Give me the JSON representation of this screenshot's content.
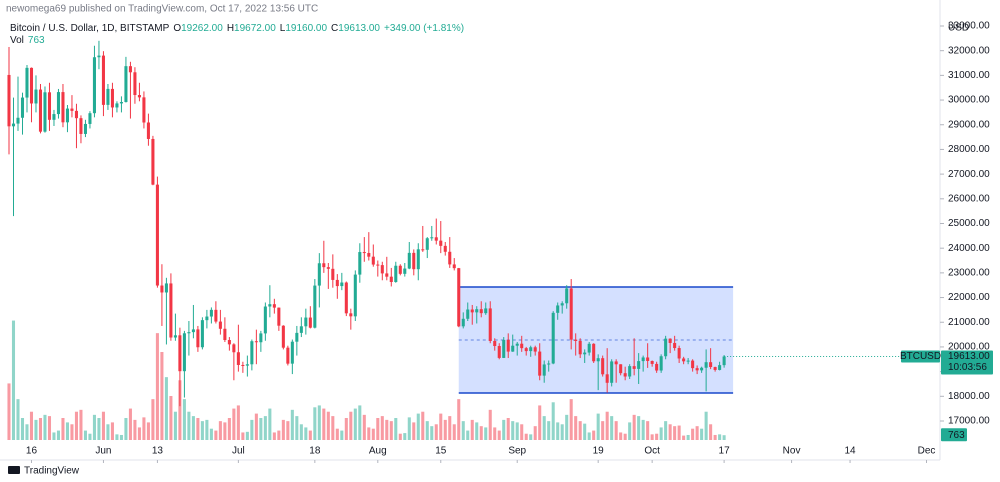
{
  "chart_data": {
    "type": "candlestick",
    "publisher": "newomega69 published on TradingView.com, Oct 17, 2022 13:56 UTC",
    "symbol": "Bitcoin / U.S. Dollar, 1D, BITSTAMP",
    "ohlc_header": [
      {
        "key": "O",
        "value": "19262.00"
      },
      {
        "key": "H",
        "value": "19672.00"
      },
      {
        "key": "L",
        "value": "19160.00"
      },
      {
        "key": "C",
        "value": "19613.00"
      }
    ],
    "change": "+349.00 (+1.81%)",
    "volume_key": "Vol",
    "volume_value": "763",
    "y_axis_title": "USD",
    "logo": "TradingView",
    "up_color": "#22ab94",
    "down_color": "#f23645",
    "box_color": "#2962ff",
    "grid": false,
    "x": [
      "2022-05-11",
      "2022-05-12",
      "2022-05-13",
      "2022-05-14",
      "2022-05-15",
      "2022-05-16",
      "2022-05-17",
      "2022-05-18",
      "2022-05-19",
      "2022-05-20",
      "2022-05-21",
      "2022-05-22",
      "2022-05-23",
      "2022-05-24",
      "2022-05-25",
      "2022-05-26",
      "2022-05-27",
      "2022-05-28",
      "2022-05-29",
      "2022-05-30",
      "2022-05-31",
      "2022-06-01",
      "2022-06-02",
      "2022-06-03",
      "2022-06-04",
      "2022-06-05",
      "2022-06-06",
      "2022-06-07",
      "2022-06-08",
      "2022-06-09",
      "2022-06-10",
      "2022-06-11",
      "2022-06-12",
      "2022-06-13",
      "2022-06-14",
      "2022-06-15",
      "2022-06-16",
      "2022-06-17",
      "2022-06-18",
      "2022-06-19",
      "2022-06-20",
      "2022-06-21",
      "2022-06-22",
      "2022-06-23",
      "2022-06-24",
      "2022-06-25",
      "2022-06-26",
      "2022-06-27",
      "2022-06-28",
      "2022-06-29",
      "2022-06-30",
      "2022-07-01",
      "2022-07-02",
      "2022-07-03",
      "2022-07-04",
      "2022-07-05",
      "2022-07-06",
      "2022-07-07",
      "2022-07-08",
      "2022-07-09",
      "2022-07-10",
      "2022-07-11",
      "2022-07-12",
      "2022-07-13",
      "2022-07-14",
      "2022-07-15",
      "2022-07-16",
      "2022-07-17",
      "2022-07-18",
      "2022-07-19",
      "2022-07-20",
      "2022-07-21",
      "2022-07-22",
      "2022-07-23",
      "2022-07-24",
      "2022-07-25",
      "2022-07-26",
      "2022-07-27",
      "2022-07-28",
      "2022-07-29",
      "2022-07-30",
      "2022-07-31",
      "2022-08-01",
      "2022-08-02",
      "2022-08-03",
      "2022-08-04",
      "2022-08-05",
      "2022-08-06",
      "2022-08-07",
      "2022-08-08",
      "2022-08-09",
      "2022-08-10",
      "2022-08-11",
      "2022-08-12",
      "2022-08-13",
      "2022-08-14",
      "2022-08-15",
      "2022-08-16",
      "2022-08-17",
      "2022-08-18",
      "2022-08-19",
      "2022-08-20",
      "2022-08-21",
      "2022-08-22",
      "2022-08-23",
      "2022-08-24",
      "2022-08-25",
      "2022-08-26",
      "2022-08-27",
      "2022-08-28",
      "2022-08-29",
      "2022-08-30",
      "2022-08-31",
      "2022-09-01",
      "2022-09-02",
      "2022-09-03",
      "2022-09-04",
      "2022-09-05",
      "2022-09-06",
      "2022-09-07",
      "2022-09-08",
      "2022-09-09",
      "2022-09-10",
      "2022-09-11",
      "2022-09-12",
      "2022-09-13",
      "2022-09-14",
      "2022-09-15",
      "2022-09-16",
      "2022-09-17",
      "2022-09-18",
      "2022-09-19",
      "2022-09-20",
      "2022-09-21",
      "2022-09-22",
      "2022-09-23",
      "2022-09-24",
      "2022-09-25",
      "2022-09-26",
      "2022-09-27",
      "2022-09-28",
      "2022-09-29",
      "2022-09-30",
      "2022-10-01",
      "2022-10-02",
      "2022-10-03",
      "2022-10-04",
      "2022-10-05",
      "2022-10-06",
      "2022-10-07",
      "2022-10-08",
      "2022-10-09",
      "2022-10-10",
      "2022-10-11",
      "2022-10-12",
      "2022-10-13",
      "2022-10-14",
      "2022-10-15",
      "2022-10-16",
      "2022-10-17"
    ],
    "open": [
      31017,
      28936,
      29047,
      29283,
      30101,
      31305,
      29862,
      30425,
      28720,
      30314,
      29200,
      29432,
      30323,
      29098,
      29655,
      29562,
      29267,
      28627,
      29032,
      29468,
      31734,
      31801,
      29805,
      30452,
      29700,
      29864,
      29920,
      31373,
      31125,
      30204,
      30109,
      29091,
      28424,
      26574,
      22487,
      22206,
      22572,
      20381,
      20471,
      19017,
      20553,
      20599,
      20710,
      19987,
      21085,
      21231,
      21502,
      21027,
      20735,
      20280,
      20104,
      19784,
      19269,
      19243,
      19297,
      20231,
      20190,
      20548,
      21637,
      21731,
      21592,
      20860,
      19970,
      19323,
      20212,
      20569,
      20836,
      21190,
      20779,
      22485,
      23389,
      23231,
      23164,
      22714,
      22465,
      22609,
      21361,
      21239,
      22930,
      23843,
      23804,
      23656,
      23336,
      23314,
      22978,
      22846,
      22630,
      23289,
      22961,
      23175,
      23810,
      23149,
      23954,
      23934,
      24403,
      24441,
      24305,
      24094,
      23854,
      23342,
      23191,
      20834,
      21140,
      21516,
      21400,
      21529,
      21368,
      21560,
      20241,
      20037,
      19555,
      20285,
      19811,
      20050,
      20131,
      19951,
      19831,
      19986,
      19812,
      18837,
      19290,
      19329,
      21381,
      21680,
      21769,
      22370,
      20296,
      20241,
      19701,
      19772,
      20127,
      19419,
      19544,
      18891,
      18547,
      19413,
      19297,
      18937,
      18802,
      19222,
      19110,
      19426,
      19573,
      19431,
      19312,
      19044,
      19623,
      20336,
      20160,
      19955,
      19532,
      19417,
      19446,
      19141,
      19051,
      19157,
      19382,
      19185,
      19068,
      19262
    ],
    "high": [
      32150,
      30100,
      30950,
      30300,
      31420,
      31320,
      31000,
      30650,
      30550,
      30700,
      29600,
      30450,
      30650,
      29800,
      30200,
      29850,
      29380,
      29200,
      29550,
      32200,
      32400,
      31980,
      30650,
      30700,
      29950,
      30150,
      31750,
      31550,
      31330,
      30700,
      30350,
      29450,
      28550,
      26900,
      23350,
      22800,
      22980,
      21350,
      20780,
      20650,
      21050,
      21700,
      20850,
      21200,
      21500,
      21600,
      21850,
      21500,
      21200,
      20400,
      20150,
      20900,
      19400,
      19650,
      20300,
      20700,
      20650,
      21800,
      22500,
      21950,
      21600,
      20880,
      20050,
      20300,
      20850,
      21200,
      21550,
      21650,
      22750,
      23800,
      24300,
      23400,
      23750,
      22950,
      23000,
      22650,
      21550,
      23100,
      24200,
      24450,
      24650,
      24150,
      23500,
      23450,
      23650,
      23200,
      23450,
      23350,
      23400,
      24250,
      23950,
      24200,
      24900,
      24450,
      24900,
      25200,
      25100,
      24250,
      24450,
      23600,
      23200,
      21400,
      21800,
      21700,
      21650,
      21850,
      21800,
      21850,
      20350,
      20150,
      20400,
      20550,
      20500,
      20200,
      20450,
      20000,
      20050,
      20050,
      20150,
      19450,
      19450,
      21450,
      21800,
      21850,
      22500,
      22750,
      20550,
      20350,
      19900,
      20200,
      20150,
      19700,
      19650,
      19950,
      19500,
      19500,
      19300,
      19200,
      19300,
      20350,
      19750,
      19650,
      20150,
      19450,
      19400,
      19700,
      20450,
      20350,
      20450,
      20050,
      19600,
      19550,
      19500,
      19250,
      19200,
      19900,
      19950,
      19200,
      19400,
      19672
    ],
    "low": [
      27800,
      25300,
      28750,
      28600,
      29500,
      29100,
      29500,
      28650,
      28680,
      28750,
      28950,
      29250,
      28900,
      28700,
      29300,
      28050,
      28250,
      28500,
      28850,
      29300,
      31250,
      29350,
      29600,
      29300,
      29500,
      29500,
      29900,
      29250,
      29850,
      29950,
      28850,
      28150,
      26550,
      22400,
      20850,
      20100,
      20250,
      20250,
      17600,
      17950,
      19650,
      20350,
      19800,
      19900,
      20750,
      20950,
      20950,
      20500,
      20200,
      19850,
      18650,
      19000,
      18950,
      18800,
      19050,
      19300,
      19800,
      20250,
      21200,
      21350,
      20650,
      19900,
      19250,
      18900,
      19650,
      20400,
      20500,
      20750,
      20750,
      21600,
      23000,
      22350,
      22400,
      21950,
      22300,
      21250,
      20700,
      21050,
      22600,
      23450,
      23500,
      23250,
      22850,
      22700,
      22700,
      22450,
      22600,
      22900,
      22850,
      23150,
      22900,
      22700,
      23850,
      23600,
      24300,
      24150,
      23800,
      23700,
      23200,
      23100,
      20800,
      20750,
      21050,
      20900,
      20950,
      21200,
      21300,
      20150,
      19850,
      19500,
      19550,
      19550,
      19800,
      19650,
      19800,
      19650,
      19600,
      19650,
      18650,
      18550,
      19000,
      19300,
      21100,
      21350,
      21550,
      19900,
      19650,
      19550,
      19350,
      19650,
      19350,
      18250,
      18800,
      18150,
      18400,
      18550,
      18850,
      18650,
      18700,
      18850,
      18500,
      19000,
      19150,
      19200,
      18950,
      18950,
      19500,
      19750,
      19850,
      19350,
      19300,
      19300,
      19000,
      18900,
      18950,
      18200,
      19100,
      19000,
      19050,
      19160
    ],
    "close": [
      28936,
      29047,
      29283,
      30101,
      31305,
      29862,
      30425,
      28720,
      30314,
      29200,
      29432,
      30323,
      29098,
      29655,
      29562,
      29267,
      28627,
      29032,
      29468,
      31734,
      31801,
      29805,
      30452,
      29700,
      29864,
      29920,
      31373,
      31125,
      30204,
      30109,
      29091,
      28424,
      26574,
      22487,
      22206,
      22572,
      20381,
      20471,
      19017,
      20553,
      20599,
      20710,
      19987,
      21085,
      21231,
      21502,
      21027,
      20735,
      20280,
      20104,
      19784,
      19269,
      19243,
      19297,
      20231,
      20190,
      20548,
      21637,
      21731,
      21592,
      20860,
      19970,
      19323,
      20212,
      20569,
      20836,
      21190,
      20779,
      22485,
      23389,
      23231,
      23164,
      22714,
      22465,
      22609,
      21361,
      21239,
      22930,
      23843,
      23804,
      23656,
      23336,
      23314,
      22978,
      22846,
      22630,
      23289,
      22961,
      23175,
      23810,
      23149,
      23954,
      23934,
      24403,
      24441,
      24305,
      24094,
      23854,
      23342,
      23191,
      20834,
      21140,
      21516,
      21400,
      21529,
      21368,
      21560,
      20241,
      20037,
      19555,
      20285,
      19811,
      20050,
      20131,
      19951,
      19831,
      19986,
      19812,
      18837,
      19290,
      19329,
      21381,
      21680,
      21769,
      22370,
      20296,
      20241,
      19701,
      19772,
      20127,
      19419,
      19544,
      18891,
      18547,
      19413,
      19297,
      18937,
      18802,
      19222,
      19110,
      19426,
      19573,
      19431,
      19312,
      19044,
      19623,
      20336,
      20160,
      19955,
      19532,
      19417,
      19446,
      19141,
      19051,
      19157,
      19382,
      19185,
      19068,
      19262,
      19613
    ],
    "volume": [
      9000,
      19000,
      6500,
      3500,
      2500,
      4500,
      3200,
      3500,
      4000,
      3800,
      1200,
      1500,
      3500,
      2800,
      2500,
      4500,
      4800,
      1500,
      1000,
      4000,
      3500,
      4500,
      2500,
      2800,
      900,
      800,
      3500,
      5000,
      3200,
      2000,
      3600,
      2800,
      6500,
      17000,
      14000,
      10000,
      7000,
      4500,
      9500,
      6500,
      4500,
      3800,
      3500,
      3000,
      3200,
      1800,
      1500,
      3000,
      2800,
      3500,
      5000,
      5500,
      1200,
      1300,
      3200,
      4200,
      3500,
      3800,
      5000,
      1200,
      1500,
      3200,
      3000,
      4800,
      3800,
      2500,
      2000,
      1500,
      5200,
      5500,
      5000,
      4500,
      3800,
      1800,
      1500,
      3500,
      4500,
      5000,
      5500,
      4000,
      2000,
      1800,
      3500,
      3800,
      3200,
      3000,
      3500,
      1000,
      1100,
      3600,
      2800,
      4200,
      4500,
      3000,
      2200,
      2500,
      4200,
      3200,
      3800,
      2500,
      6500,
      3000,
      1500,
      3200,
      2800,
      2200,
      2000,
      4800,
      2000,
      1500,
      3200,
      3500,
      3000,
      2800,
      2500,
      1000,
      900,
      2200,
      5500,
      3800,
      3000,
      6000,
      2800,
      2500,
      4000,
      6500,
      3800,
      3000,
      2600,
      1200,
      1500,
      4200,
      3000,
      4500,
      3800,
      3000,
      1200,
      1000,
      2800,
      4000,
      3800,
      3200,
      3000,
      900,
      1000,
      2000,
      3000,
      2500,
      2200,
      2300,
      700,
      800,
      1800,
      2200,
      1800,
      4500,
      2500,
      800,
      900,
      763
    ],
    "xlim": [
      "2022-05-09",
      "2022-12-04"
    ],
    "xticks": [
      {
        "value": "2022-05-16",
        "label": "16"
      },
      {
        "value": "2022-06-01",
        "label": "Jun"
      },
      {
        "value": "2022-06-13",
        "label": "13"
      },
      {
        "value": "2022-07-01",
        "label": "Jul"
      },
      {
        "value": "2022-07-18",
        "label": "18"
      },
      {
        "value": "2022-08-01",
        "label": "Aug"
      },
      {
        "value": "2022-08-15",
        "label": "15"
      },
      {
        "value": "2022-09-01",
        "label": "Sep"
      },
      {
        "value": "2022-09-19",
        "label": "19"
      },
      {
        "value": "2022-10-01",
        "label": "Oct"
      },
      {
        "value": "2022-10-17",
        "label": "17"
      },
      {
        "value": "2022-11-01",
        "label": "Nov"
      },
      {
        "value": "2022-11-14",
        "label": "14"
      },
      {
        "value": "2022-12-01",
        "label": "Dec"
      }
    ],
    "ylim": [
      16230,
      34053
    ],
    "yticks": [
      {
        "value": 17000,
        "label": "17000.00"
      },
      {
        "value": 18000,
        "label": "18000.00"
      },
      {
        "value": 19000,
        "label": "19000.00"
      },
      {
        "value": 20000,
        "label": "20000.00"
      },
      {
        "value": 21000,
        "label": "21000.00"
      },
      {
        "value": 22000,
        "label": "22000.00"
      },
      {
        "value": 23000,
        "label": "23000.00"
      },
      {
        "value": 24000,
        "label": "24000.00"
      },
      {
        "value": 25000,
        "label": "25000.00"
      },
      {
        "value": 26000,
        "label": "26000.00"
      },
      {
        "value": 27000,
        "label": "27000.00"
      },
      {
        "value": 28000,
        "label": "28000.00"
      },
      {
        "value": 29000,
        "label": "29000.00"
      },
      {
        "value": 30000,
        "label": "30000.00"
      },
      {
        "value": 31000,
        "label": "31000.00"
      },
      {
        "value": 32000,
        "label": "32000.00"
      },
      {
        "value": 33000,
        "label": "33000.00"
      }
    ],
    "y2lim": [
      0,
      70000
    ],
    "range_box": {
      "x0": "2022-08-19",
      "x1": "2022-10-19",
      "y0": 18136,
      "y1": 22429
    },
    "last_price": {
      "symbol": "BTCUSD",
      "label": "19613.00",
      "countdown": "10:03:56"
    },
    "volume_label": "763"
  }
}
